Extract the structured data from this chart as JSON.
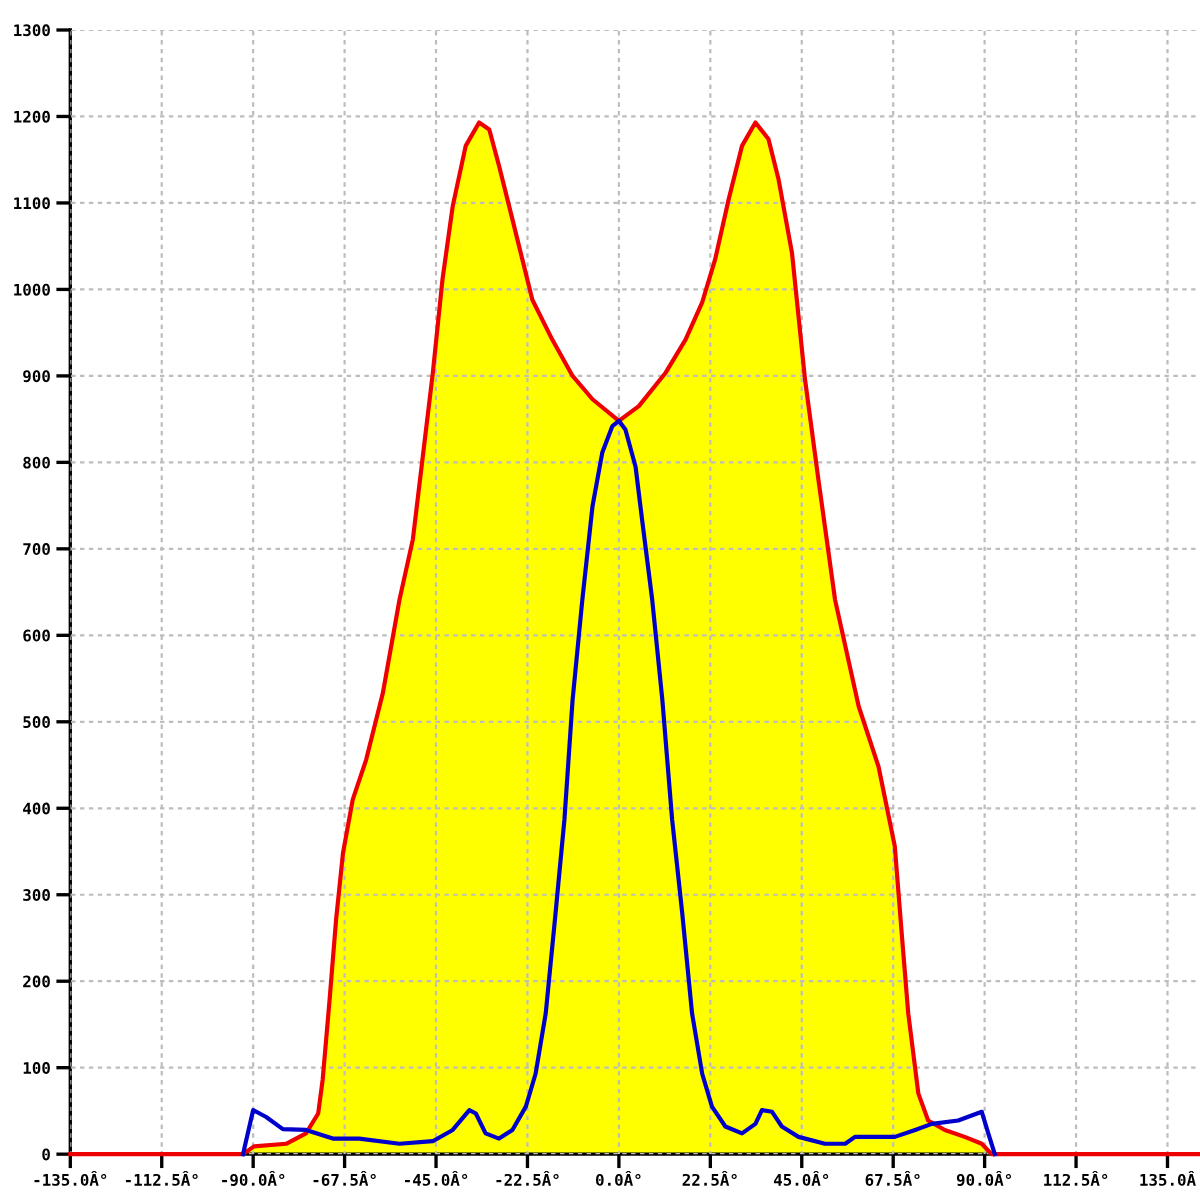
{
  "chart_data": {
    "type": "line",
    "xlim": [
      -152.3,
      143
    ],
    "ylim": [
      -53,
      1300
    ],
    "xticks": [
      {
        "value": -135,
        "label": "-135.0Â°"
      },
      {
        "value": -112.5,
        "label": "-112.5Â°"
      },
      {
        "value": -90,
        "label": "-90.0Â°"
      },
      {
        "value": -67.5,
        "label": "-67.5Â°"
      },
      {
        "value": -45,
        "label": "-45.0Â°"
      },
      {
        "value": -22.5,
        "label": "-22.5Â°"
      },
      {
        "value": 0,
        "label": "0.0Â°"
      },
      {
        "value": 22.5,
        "label": "22.5Â°"
      },
      {
        "value": 45,
        "label": "45.0Â°"
      },
      {
        "value": 67.5,
        "label": "67.5Â°"
      },
      {
        "value": 90,
        "label": "90.0Â°"
      },
      {
        "value": 112.5,
        "label": "112.5Â°"
      },
      {
        "value": 135,
        "label": "135.0Â"
      }
    ],
    "yticks": [
      0,
      100,
      200,
      300,
      400,
      500,
      600,
      700,
      800,
      900,
      1000,
      1100,
      1200,
      1300
    ],
    "grid": true,
    "line_style": "solid",
    "marker": "none",
    "series": [
      {
        "type": "area",
        "color": "#ffff00",
        "x": [
          -92.5,
          -89.8,
          -81.9,
          -77.0,
          -74.0,
          -72.9,
          -71.2,
          -69.6,
          -67.9,
          -65.5,
          -62.2,
          -58.1,
          -54.0,
          -50.7,
          -45.8,
          -43.4,
          -40.9,
          -37.7,
          -34.4,
          -31.9,
          -29.5,
          -26.2,
          -21.3,
          -16.4,
          -11.4,
          -6.5,
          0,
          4.9,
          11.4,
          16.4,
          20.5,
          23.7,
          27.0,
          30.3,
          33.6,
          36.8,
          39.3,
          42.6,
          45.8,
          49.1,
          53.2,
          59.0,
          63.9,
          67.9,
          69.6,
          71.2,
          73.7,
          76.1,
          80.2,
          85.1,
          89.3,
          91.7
        ],
        "values": [
          0,
          9,
          12,
          24,
          47,
          86,
          178,
          271,
          348,
          410,
          456,
          533,
          641,
          711,
          903,
          1012,
          1096,
          1166,
          1193,
          1185,
          1143,
          1081,
          988,
          942,
          900,
          873,
          848,
          865,
          903,
          942,
          985,
          1035,
          1104,
          1166,
          1193,
          1174,
          1127,
          1042,
          896,
          780,
          641,
          518,
          448,
          356,
          255,
          163,
          70,
          39,
          28,
          20,
          12,
          0
        ]
      },
      {
        "type": "line",
        "color": "#ee0000",
        "x": [
          -135,
          -92.5,
          -89.8,
          -81.9,
          -77.0,
          -74.0,
          -72.9,
          -71.2,
          -69.6,
          -67.9,
          -65.5,
          -62.2,
          -58.1,
          -54.0,
          -50.7,
          -45.8,
          -43.4,
          -40.9,
          -37.7,
          -34.4,
          -31.9,
          -29.5,
          -26.2,
          -21.3,
          -16.4,
          -11.4,
          -6.5,
          0,
          4.9,
          11.4,
          16.4,
          20.5,
          23.7,
          27.0,
          30.3,
          33.6,
          36.8,
          39.3,
          42.6,
          45.8,
          49.1,
          53.2,
          59.0,
          63.9,
          67.9,
          69.6,
          71.2,
          73.7,
          76.1,
          80.2,
          85.1,
          89.3,
          91.7,
          143
        ],
        "values": [
          0,
          0,
          9,
          12,
          24,
          47,
          86,
          178,
          271,
          348,
          410,
          456,
          533,
          641,
          711,
          903,
          1012,
          1096,
          1166,
          1193,
          1185,
          1143,
          1081,
          988,
          942,
          900,
          873,
          848,
          865,
          903,
          942,
          985,
          1035,
          1104,
          1166,
          1193,
          1174,
          1127,
          1042,
          896,
          780,
          641,
          518,
          448,
          356,
          255,
          163,
          70,
          39,
          28,
          20,
          12,
          0,
          0
        ]
      },
      {
        "color": "#0000cc",
        "x": [
          -92.5,
          -90.0,
          -86.8,
          -82.7,
          -77.0,
          -70.4,
          -63.9,
          -54.0,
          -45.8,
          -40.9,
          -36.8,
          -35.2,
          -32.8,
          -29.5,
          -26.2,
          -22.9,
          -20.5,
          -18.0,
          -15.6,
          -13.4,
          -11.4,
          -9.0,
          -6.5,
          -4.1,
          -1.6,
          0,
          1.6,
          4.1,
          5.7,
          8.2,
          10.7,
          13.1,
          15.6,
          18.0,
          20.5,
          22.9,
          26.2,
          30.3,
          33.6,
          35.2,
          37.7,
          40.1,
          44.2,
          50.7,
          55.7,
          58.1,
          67.9,
          72.9,
          77.0,
          83.5,
          89.3,
          90.9,
          92.5
        ],
        "values": [
          0,
          51,
          43,
          29,
          28,
          18,
          18,
          12,
          15,
          28,
          51,
          47,
          24,
          18,
          28,
          55,
          93,
          163,
          278,
          387,
          525,
          641,
          749,
          811,
          842,
          848,
          838,
          795,
          734,
          641,
          525,
          387,
          278,
          163,
          93,
          55,
          32,
          24,
          35,
          51,
          49,
          32,
          20,
          12,
          12,
          20,
          20,
          28,
          35,
          39,
          49,
          24,
          0
        ]
      }
    ]
  }
}
